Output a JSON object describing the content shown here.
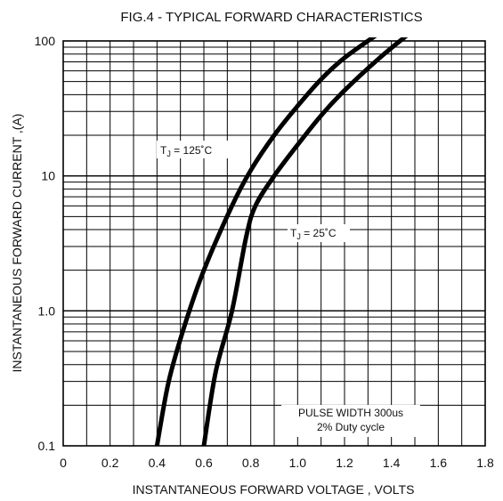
{
  "chart_data": {
    "type": "line",
    "title": "FIG.4 - TYPICAL FORWARD CHARACTERISTICS",
    "xlabel": "INSTANTANEOUS FORWARD VOLTAGE , VOLTS",
    "ylabel": "INSTANTANEOUS  FORWARD CURRENT ,(A)",
    "xlim": [
      0,
      1.8
    ],
    "ylim": [
      0.1,
      100
    ],
    "y_scale": "log",
    "grid": true,
    "x_ticks": [
      "0",
      "0.2",
      "0.4",
      "0.6",
      "0.8",
      "1.0",
      "1.2",
      "1.4",
      "1.6",
      "1.8"
    ],
    "y_ticks": [
      "0.1",
      "1.0",
      "10",
      "100"
    ],
    "series": [
      {
        "name": "TJ = 125°C",
        "label_main": "T",
        "label_sub": "J",
        "label_rest": " = 125˚C",
        "x": [
          0.4,
          0.45,
          0.52,
          0.6,
          0.72,
          0.8,
          0.9,
          1.0,
          1.1,
          1.2,
          1.35
        ],
        "y": [
          0.1,
          0.3,
          0.8,
          2.0,
          6.0,
          11.0,
          20.0,
          33.0,
          52.0,
          75.0,
          115.0
        ]
      },
      {
        "name": "TJ = 25°C",
        "label_main": "T",
        "label_sub": "J",
        "label_rest": " = 25˚C",
        "x": [
          0.6,
          0.65,
          0.72,
          0.78,
          0.82,
          0.9,
          1.0,
          1.1,
          1.2,
          1.35,
          1.48
        ],
        "y": [
          0.1,
          0.35,
          1.0,
          3.5,
          6.0,
          10.0,
          17.0,
          28.0,
          43.0,
          75.0,
          115.0
        ]
      }
    ],
    "annotation": {
      "line1": "PULSE WIDTH 300us",
      "line2": "2% Duty cycle"
    }
  }
}
